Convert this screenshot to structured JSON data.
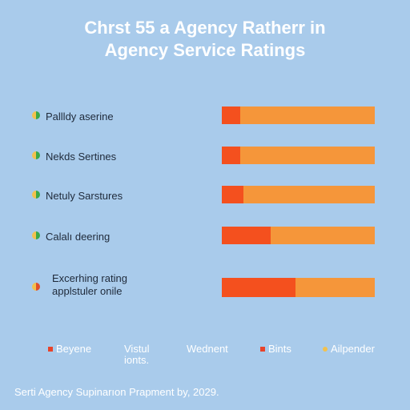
{
  "chart_data": {
    "type": "bar",
    "orientation": "horizontal",
    "title": "Chrst 55 a Agency Ratherr in",
    "subtitle": "Agency Service Ratings",
    "categories": [
      "Pallldy aserine",
      "Nekds Sertines",
      "Netuly Sarstures",
      "Calalı deering",
      "Excerhing rating applstuler onile"
    ],
    "values": [
      12,
      12,
      14,
      32,
      48
    ],
    "ylim": [
      0,
      100
    ],
    "xlabel": "",
    "ylabel": "",
    "grid": false,
    "legend_position": "bottom",
    "legend": [
      {
        "label": "Beyene",
        "color": "#e8432a"
      },
      {
        "label": "Vistul ionts.",
        "color": ""
      },
      {
        "label": "Wednent",
        "color": ""
      },
      {
        "label": "Bints",
        "color": "#e8432a"
      },
      {
        "label": "Ailpender",
        "color": "#f2c14e"
      }
    ],
    "colors": {
      "fill": "#f4501e",
      "track": "#f5963a",
      "background": "#a9cbeb"
    }
  },
  "footnote": "Serti Agency Supinarıon Prapment by, 2029."
}
